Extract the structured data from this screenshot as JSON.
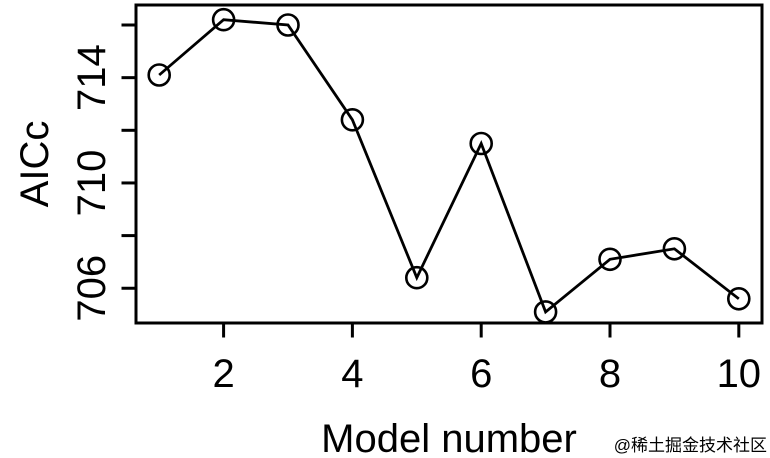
{
  "chart_data": {
    "type": "line",
    "title": "",
    "xlabel": "Model number",
    "ylabel": "AICc",
    "x": [
      1,
      2,
      3,
      4,
      5,
      6,
      7,
      8,
      9,
      10
    ],
    "values": [
      714.1,
      716.2,
      716.0,
      712.4,
      706.4,
      711.5,
      705.1,
      707.1,
      707.5,
      705.6
    ],
    "xlim": [
      0.64,
      10.36
    ],
    "ylim": [
      704.68,
      716.76
    ],
    "x_axis_ticks": [
      {
        "value": 2,
        "label": "2"
      },
      {
        "value": 4,
        "label": "4"
      },
      {
        "value": 6,
        "label": "6"
      },
      {
        "value": 8,
        "label": "8"
      },
      {
        "value": 10,
        "label": "10"
      }
    ],
    "y_axis_ticks": [
      {
        "value": 706,
        "label": "706"
      },
      {
        "value": 708,
        "label": ""
      },
      {
        "value": 710,
        "label": "710"
      },
      {
        "value": 712,
        "label": ""
      },
      {
        "value": 714,
        "label": "714"
      },
      {
        "value": 716,
        "label": ""
      }
    ],
    "grid": false,
    "legend": false,
    "marker": "open-circle",
    "line_color": "#000000",
    "marker_color": "#000000",
    "axis_color": "#000000",
    "background_color": "#ffffff"
  },
  "watermark": {
    "text": "@稀土掘金技术社区",
    "color": "#c9c9c9"
  }
}
